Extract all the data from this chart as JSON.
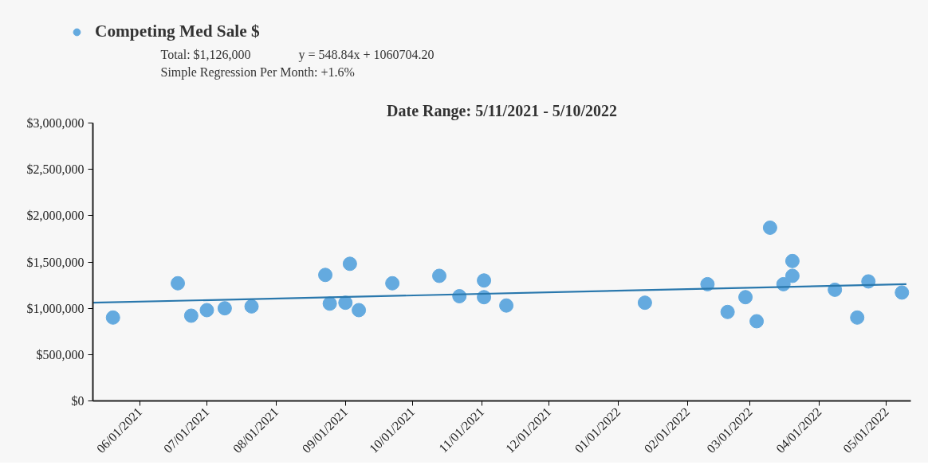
{
  "chart_data": {
    "type": "scatter",
    "title": "Date Range: 5/11/2021 - 5/10/2022",
    "annotations": [
      "Total: $1,126,000",
      "y = 548.84x + 1060704.20",
      "Simple Regression Per Month: +1.6%"
    ],
    "series": [
      {
        "name": "Competing Med Sale $",
        "color": "#64aadf",
        "marker": "circle",
        "x": [
          "2021-05-20",
          "2021-06-18",
          "2021-06-24",
          "2021-07-01",
          "2021-07-09",
          "2021-07-21",
          "2021-08-23",
          "2021-08-25",
          "2021-09-01",
          "2021-09-03",
          "2021-09-07",
          "2021-09-22",
          "2021-10-13",
          "2021-10-22",
          "2021-11-02",
          "2021-11-02",
          "2021-11-12",
          "2022-01-13",
          "2022-02-10",
          "2022-02-19",
          "2022-02-27",
          "2022-03-04",
          "2022-03-10",
          "2022-03-16",
          "2022-03-20",
          "2022-03-20",
          "2022-04-08",
          "2022-04-18",
          "2022-04-23",
          "2022-05-08"
        ],
        "values": [
          900000,
          1270000,
          920000,
          980000,
          1000000,
          1020000,
          1360000,
          1050000,
          1060000,
          1480000,
          980000,
          1270000,
          1350000,
          1130000,
          1300000,
          1120000,
          1030000,
          1060000,
          1260000,
          960000,
          1120000,
          860000,
          1870000,
          1260000,
          1510000,
          1350000,
          1200000,
          900000,
          1290000,
          1170000
        ]
      },
      {
        "type": "line",
        "color": "#2a78ad",
        "x": [
          "2021-05-11",
          "2022-05-10"
        ],
        "values": [
          1060000,
          1260000
        ]
      }
    ],
    "xlim": [
      "2021-05-11",
      "2022-05-12"
    ],
    "xticks": [
      {
        "value": "2021-06-01",
        "label": "06/01/2021"
      },
      {
        "value": "2021-07-01",
        "label": "07/01/2021"
      },
      {
        "value": "2021-08-01",
        "label": "08/01/2021"
      },
      {
        "value": "2021-09-01",
        "label": "09/01/2021"
      },
      {
        "value": "2021-10-01",
        "label": "10/01/2021"
      },
      {
        "value": "2021-11-01",
        "label": "11/01/2021"
      },
      {
        "value": "2021-12-01",
        "label": "12/01/2021"
      },
      {
        "value": "2022-01-01",
        "label": "01/01/2022"
      },
      {
        "value": "2022-02-01",
        "label": "02/01/2022"
      },
      {
        "value": "2022-03-01",
        "label": "03/01/2022"
      },
      {
        "value": "2022-04-01",
        "label": "04/01/2022"
      },
      {
        "value": "2022-05-01",
        "label": "05/01/2022"
      }
    ],
    "ylim": [
      0,
      3000000
    ],
    "yticks": [
      {
        "value": 0,
        "label": "$0"
      },
      {
        "value": 500000,
        "label": "$500,000"
      },
      {
        "value": 1000000,
        "label": "$1,000,000"
      },
      {
        "value": 1500000,
        "label": "$1,500,000"
      },
      {
        "value": 2000000,
        "label": "$2,000,000"
      },
      {
        "value": 2500000,
        "label": "$2,500,000"
      },
      {
        "value": 3000000,
        "label": "$3,000,000"
      }
    ],
    "grid": false,
    "legend": "top left",
    "line_style": "solid"
  }
}
